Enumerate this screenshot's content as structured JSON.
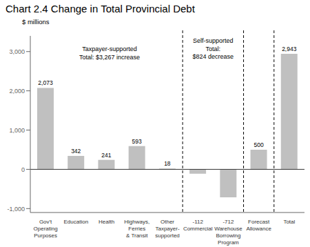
{
  "chart_data": {
    "type": "bar",
    "title": "Chart 2.4 Change in Total Provincial Debt",
    "y_label": "$ millions",
    "categories": [
      "Gov't\nOperating\nPurposes",
      "Education",
      "Health",
      "Highways,\nFerries\n& Transit",
      "Other\nTaxpayer-\nsupported",
      "-112\nCommercial",
      "-712\nWarehouse\nBorrowing\nProgram",
      "Forecast\nAllowance",
      "Total"
    ],
    "values": [
      2073,
      342,
      241,
      593,
      18,
      -112,
      -712,
      500,
      2943
    ],
    "value_labels": [
      "2,073",
      "342",
      "241",
      "593",
      "18",
      null,
      null,
      "500",
      "2,943"
    ],
    "data_labels": true,
    "color": "#c0c0c0",
    "ylim": [
      -1100,
      3400
    ],
    "yticks": [
      {
        "value": -1000,
        "label": "-1,000"
      },
      0,
      {
        "value": 1000,
        "label": "1,000"
      },
      {
        "value": 2000,
        "label": "2,000"
      },
      {
        "value": 3000,
        "label": "3,000"
      }
    ],
    "annotations": [
      "Taxpayer-supported\nTotal: $3,267 increase",
      "Self-supported\nTotal:\n$824 decrease"
    ],
    "grid": false
  }
}
